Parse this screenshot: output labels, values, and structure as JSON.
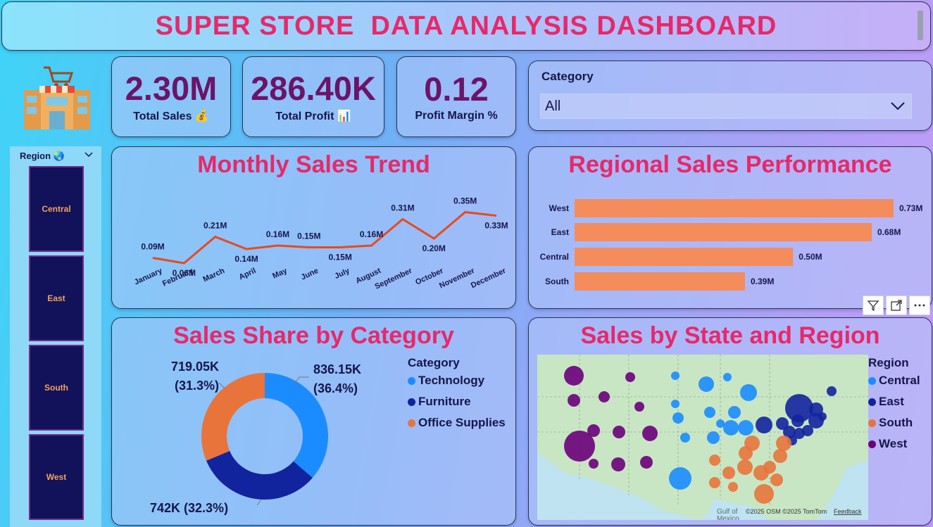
{
  "header": {
    "title": "SUPER STORE  DATA ANALYSIS DASHBOARD"
  },
  "kpis": [
    {
      "value": "2.30M",
      "label": "Total Sales 💰"
    },
    {
      "value": "286.40K",
      "label": "Total Profit 📊"
    },
    {
      "value": "0.12",
      "label": "Profit Margin %"
    }
  ],
  "category_slicer": {
    "label": "Category",
    "selected": "All"
  },
  "region_slicer": {
    "label": "Region 🌏",
    "buttons": [
      "Central",
      "East",
      "South",
      "West"
    ]
  },
  "colors": {
    "title_pink": "#e8286a",
    "kpi_purple": "#6b1468",
    "line_red": "#e84a1d",
    "bar_orange": "#f48c5c",
    "technology": "#1a8cff",
    "furniture": "#12239e",
    "office_supplies": "#e8743b",
    "region_central": "#1a8cff",
    "region_east": "#12239e",
    "region_south": "#e8743b",
    "region_west": "#6b007b"
  },
  "map": {
    "title": "Sales by State and Region",
    "attribution": "©2025 OSM  ©2025 TomTom",
    "feedback": "Feedback",
    "legend_title": "Region",
    "legend": [
      "Central",
      "East",
      "South",
      "West"
    ],
    "gulf_label": "Gulf of",
    "gulf_label2": "Mexico"
  },
  "chart_data": [
    {
      "type": "line",
      "title": "Monthly Sales Trend",
      "categories": [
        "January",
        "February",
        "March",
        "April",
        "May",
        "June",
        "July",
        "August",
        "September",
        "October",
        "November",
        "December"
      ],
      "values": [
        0.09,
        0.06,
        0.21,
        0.14,
        0.16,
        0.15,
        0.15,
        0.16,
        0.31,
        0.2,
        0.35,
        0.33
      ],
      "labels": [
        "0.09M",
        "0.06M",
        "0.21M",
        "0.14M",
        "0.16M",
        "0.15M",
        "0.15M",
        "0.16M",
        "0.31M",
        "0.20M",
        "0.35M",
        "0.33M"
      ],
      "unit": "M"
    },
    {
      "type": "bar",
      "title": "Regional Sales Performance",
      "orientation": "horizontal",
      "categories": [
        "West",
        "East",
        "Central",
        "South"
      ],
      "values": [
        0.73,
        0.68,
        0.5,
        0.39
      ],
      "labels": [
        "0.73M",
        "0.68M",
        "0.50M",
        "0.39M"
      ]
    },
    {
      "type": "pie",
      "title": "Sales Share by Category",
      "donut": true,
      "legend_title": "Category",
      "series": [
        {
          "name": "Technology",
          "value": 836.15,
          "label": "836.15K",
          "pct": "(36.4%)"
        },
        {
          "name": "Furniture",
          "value": 742.0,
          "label": "742K (32.3%)",
          "pct": ""
        },
        {
          "name": "Office Supplies",
          "value": 719.05,
          "label": "719.05K",
          "pct": "(31.3%)"
        }
      ]
    }
  ]
}
